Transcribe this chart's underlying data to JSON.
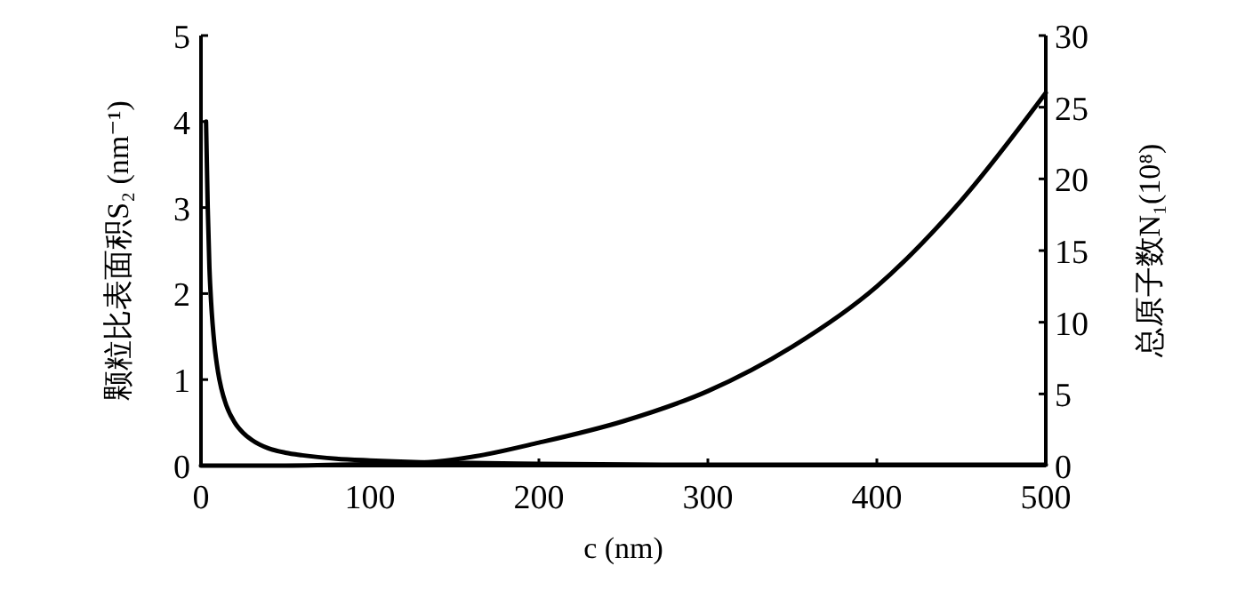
{
  "chart_data": {
    "type": "line",
    "xlabel": "c (nm)",
    "ylabel": "颗粒比表面积S₂ (nm⁻¹)",
    "y2label": "总原子数N₁(10⁸)",
    "xlim": [
      0,
      500
    ],
    "xticks": [
      0,
      100,
      200,
      300,
      400,
      500
    ],
    "ylim": [
      0,
      5
    ],
    "yticks": [
      0,
      1,
      2,
      3,
      4,
      5
    ],
    "y2lim": [
      0,
      30
    ],
    "y2ticks": [
      0,
      5,
      10,
      15,
      20,
      25,
      30
    ],
    "grid": false,
    "marker": "none",
    "line_style": "solid",
    "series": [
      {
        "color": "#000000",
        "x": [
          3,
          4,
          5,
          6,
          8,
          10,
          12,
          15,
          20,
          25,
          30,
          40,
          50,
          60,
          80,
          100,
          130,
          160,
          200,
          300,
          400,
          500
        ],
        "values": [
          4,
          3,
          2.3,
          1.9,
          1.4,
          1.1,
          0.9,
          0.7,
          0.5,
          0.38,
          0.3,
          0.2,
          0.15,
          0.12,
          0.08,
          0.06,
          0.04,
          0.03,
          0.02,
          0.01,
          0.01,
          0.01
        ]
      },
      {
        "color": "#000000",
        "axis": "y2",
        "x": [
          0,
          50,
          100,
          130,
          160,
          200,
          250,
          300,
          350,
          400,
          450,
          500
        ],
        "values": [
          0,
          0,
          0.1,
          0.2,
          0.6,
          1.6,
          3.1,
          5.2,
          8.3,
          12.5,
          18.5,
          26
        ]
      }
    ]
  }
}
